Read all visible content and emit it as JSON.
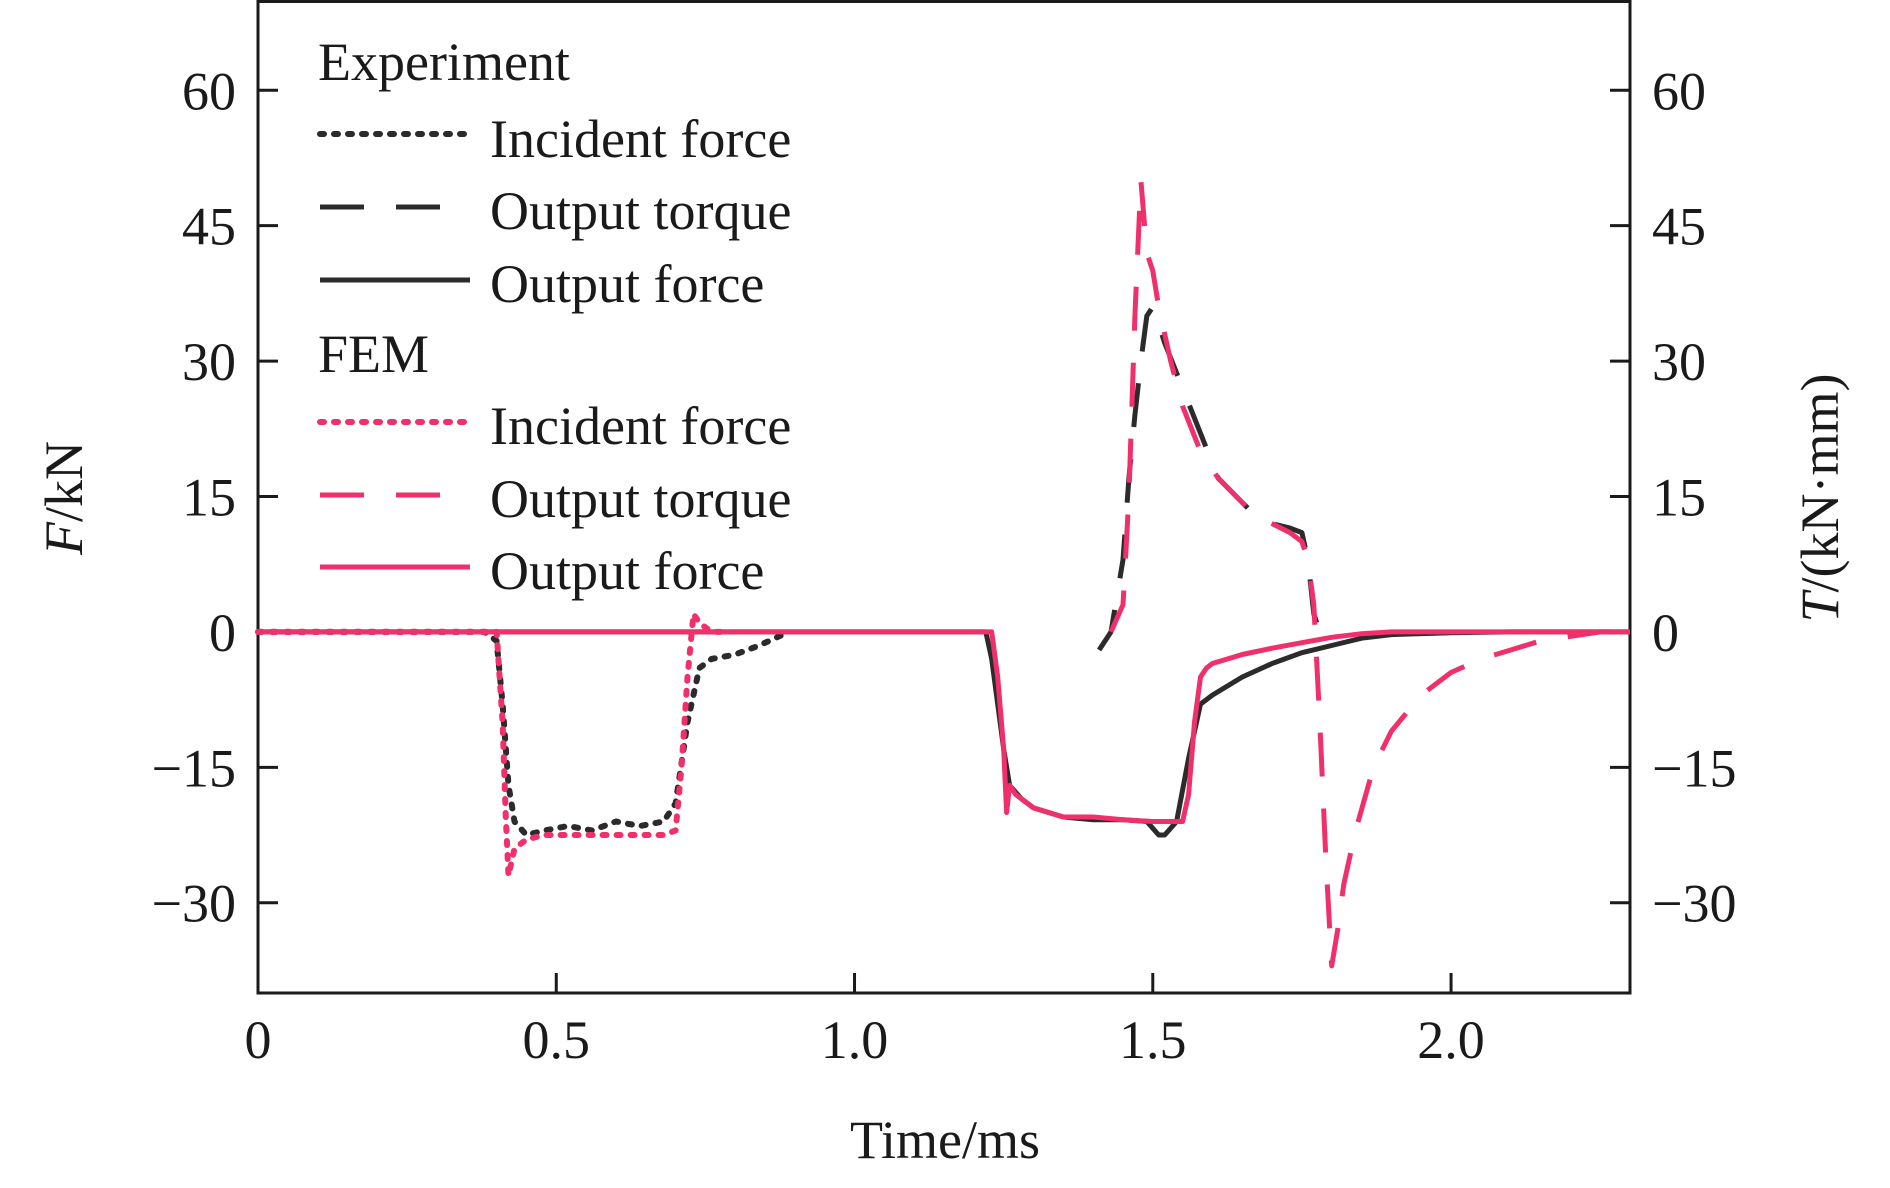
{
  "chart_data": {
    "type": "line",
    "xlabel": "Time/ms",
    "ylabel_left": {
      "var": "F",
      "unit": "/kN"
    },
    "ylabel_right": {
      "var": "T",
      "unit": "/(kN·mm)"
    },
    "xlim": [
      0,
      2.3
    ],
    "ylim": [
      -40,
      70
    ],
    "x_ticks": [
      0,
      0.5,
      1.0,
      1.5,
      2.0
    ],
    "x_tick_labels": [
      "0",
      "0.5",
      "1.0",
      "1.5",
      "2.0"
    ],
    "y_ticks": [
      60,
      45,
      30,
      15,
      0,
      -15,
      -30
    ],
    "y_tick_labels": [
      "60",
      "45",
      "30",
      "15",
      "0",
      "−15",
      "−30"
    ],
    "grid": false,
    "legend_position": "top-left",
    "colors": {
      "experiment": "#2b2b2b",
      "fem": "#f0306a"
    },
    "legend_groups": [
      {
        "title": "Experiment",
        "entries": [
          "Incident force",
          "Output torque",
          "Output force"
        ]
      },
      {
        "title": "FEM",
        "entries": [
          "Incident force",
          "Output torque",
          "Output force"
        ]
      }
    ],
    "series": [
      {
        "name": "Incident force",
        "group": "Experiment",
        "style": "dotted",
        "color": "#2b2b2b",
        "x": [
          0.0,
          0.38,
          0.4,
          0.41,
          0.42,
          0.43,
          0.45,
          0.48,
          0.52,
          0.56,
          0.6,
          0.64,
          0.68,
          0.7,
          0.72,
          0.74,
          0.76,
          0.8,
          0.84,
          0.88,
          0.89
        ],
        "y": [
          0,
          0,
          -1,
          -8,
          -17,
          -21,
          -22.5,
          -22,
          -21.5,
          -22,
          -21,
          -21.5,
          -21,
          -19,
          -10,
          -4,
          -3,
          -2.5,
          -1.5,
          -0.3,
          0
        ]
      },
      {
        "name": "Output torque",
        "group": "Experiment",
        "style": "dashed",
        "color": "#2b2b2b",
        "x": [
          1.41,
          1.43,
          1.45,
          1.46,
          1.47,
          1.48,
          1.49,
          1.5,
          1.52,
          1.55,
          1.58,
          1.61,
          1.64,
          1.67,
          1.7,
          1.73,
          1.75,
          1.76,
          1.77,
          1.78
        ],
        "y": [
          -2,
          0,
          8,
          17,
          24,
          30,
          35,
          36,
          32,
          27,
          22,
          17,
          15,
          13,
          12,
          11.5,
          11,
          8,
          2,
          0
        ]
      },
      {
        "name": "Output force",
        "group": "Experiment",
        "style": "solid",
        "color": "#2b2b2b",
        "x": [
          0.0,
          1.22,
          1.23,
          1.24,
          1.25,
          1.26,
          1.28,
          1.3,
          1.35,
          1.4,
          1.45,
          1.49,
          1.51,
          1.52,
          1.54,
          1.56,
          1.58,
          1.6,
          1.65,
          1.7,
          1.75,
          1.8,
          1.85,
          1.9,
          2.0,
          2.1,
          2.2,
          2.3
        ],
        "y": [
          0,
          0,
          -3,
          -8,
          -13,
          -17,
          -18.5,
          -19.5,
          -20.5,
          -20.8,
          -20.8,
          -21,
          -22.5,
          -22.5,
          -21,
          -14,
          -8,
          -7,
          -5,
          -3.5,
          -2.3,
          -1.5,
          -0.7,
          -0.3,
          -0.1,
          0,
          0,
          0
        ]
      },
      {
        "name": "Incident force",
        "group": "FEM",
        "style": "dotted",
        "color": "#f0306a",
        "x": [
          0.0,
          0.4,
          0.41,
          0.415,
          0.42,
          0.43,
          0.45,
          0.48,
          0.52,
          0.56,
          0.6,
          0.64,
          0.68,
          0.7,
          0.71,
          0.72,
          0.73,
          0.74,
          0.76,
          0.78
        ],
        "y": [
          0,
          0,
          -10,
          -20,
          -27,
          -24,
          -23,
          -22.5,
          -22.5,
          -22.5,
          -22.5,
          -22.5,
          -22.5,
          -22,
          -15,
          -5,
          2,
          1,
          0,
          0
        ]
      },
      {
        "name": "Output torque",
        "group": "FEM",
        "style": "dashed",
        "color": "#f0306a",
        "x": [
          1.43,
          1.45,
          1.46,
          1.47,
          1.48,
          1.49,
          1.5,
          1.51,
          1.53,
          1.55,
          1.58,
          1.61,
          1.64,
          1.67,
          1.7,
          1.73,
          1.75,
          1.76,
          1.77,
          1.78,
          1.79,
          1.8,
          1.81,
          1.82,
          1.84,
          1.87,
          1.9,
          1.95,
          2.0,
          2.05,
          2.1,
          2.15,
          2.2,
          2.25,
          2.3
        ],
        "y": [
          0,
          3,
          15,
          35,
          50,
          42,
          40,
          36,
          30,
          25,
          20,
          17,
          15,
          13,
          12,
          11,
          10,
          8,
          3,
          -10,
          -25,
          -37,
          -33,
          -28,
          -22,
          -15,
          -11,
          -7,
          -4.5,
          -3,
          -2,
          -1,
          -0.5,
          0,
          0
        ]
      },
      {
        "name": "Output force",
        "group": "FEM",
        "style": "solid",
        "color": "#f0306a",
        "x": [
          0.0,
          1.23,
          1.24,
          1.25,
          1.255,
          1.26,
          1.27,
          1.3,
          1.35,
          1.4,
          1.45,
          1.5,
          1.55,
          1.56,
          1.57,
          1.58,
          1.59,
          1.6,
          1.65,
          1.7,
          1.75,
          1.8,
          1.85,
          1.9,
          2.0,
          2.3
        ],
        "y": [
          0,
          0,
          -5,
          -13,
          -20,
          -17,
          -18,
          -19.5,
          -20.5,
          -20.5,
          -20.8,
          -21,
          -21,
          -18,
          -10,
          -5,
          -4,
          -3.5,
          -2.5,
          -1.8,
          -1.2,
          -0.6,
          -0.2,
          0,
          0,
          0
        ]
      }
    ]
  }
}
